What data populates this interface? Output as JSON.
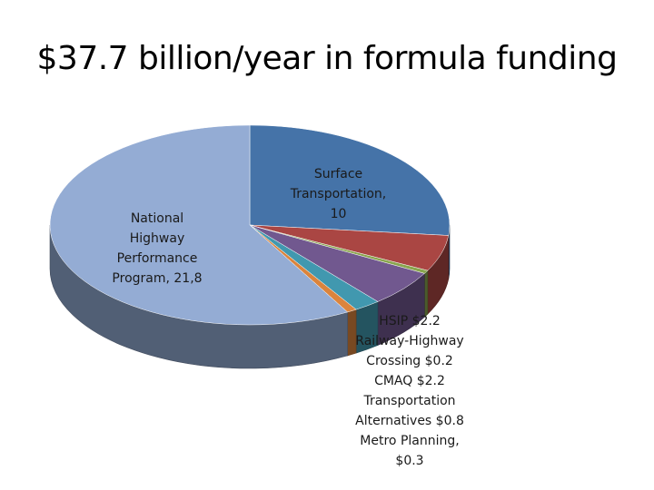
{
  "slide": {
    "title": "$37.7 billion/year in formula funding"
  },
  "colors": {
    "nhpp": "#94ACD4",
    "stp": "#4573A8",
    "hsip": "#AA4643",
    "railway_highway": "#89A54E",
    "cmaq": "#71588F",
    "transportation_alternatives": "#4198AF",
    "metro_planning": "#DB843D"
  },
  "chart_data": {
    "type": "pie",
    "style": "3d",
    "title": "$37.7 billion/year in formula funding",
    "legend": "none",
    "slices": [
      {
        "category": "Surface Transportation",
        "value": 10,
        "color": "#4573A8"
      },
      {
        "category": "HSIP",
        "value": 2.2,
        "color": "#AA4643"
      },
      {
        "category": "Railway-Highway Crossing",
        "value": 0.2,
        "color": "#89A54E"
      },
      {
        "category": "CMAQ",
        "value": 2.2,
        "color": "#71588F"
      },
      {
        "category": "Transportation Alternatives",
        "value": 0.8,
        "color": "#4198AF"
      },
      {
        "category": "Metro Planning",
        "value": 0.3,
        "color": "#DB843D"
      },
      {
        "category": "National Highway Performance Program",
        "value": 21.8,
        "color": "#94ACD4"
      }
    ],
    "labels": {
      "nhpp": [
        "National",
        "Highway",
        "Performance",
        "Program, 21,8"
      ],
      "stp": [
        "Surface",
        "Transportation,",
        "10"
      ],
      "others": [
        "HSIP $2.2",
        "Railway-Highway",
        "Crossing $0.2",
        "CMAQ $2.2",
        "Transportation",
        "Alternatives $0.8",
        "Metro Planning,",
        "$0.3"
      ]
    }
  }
}
